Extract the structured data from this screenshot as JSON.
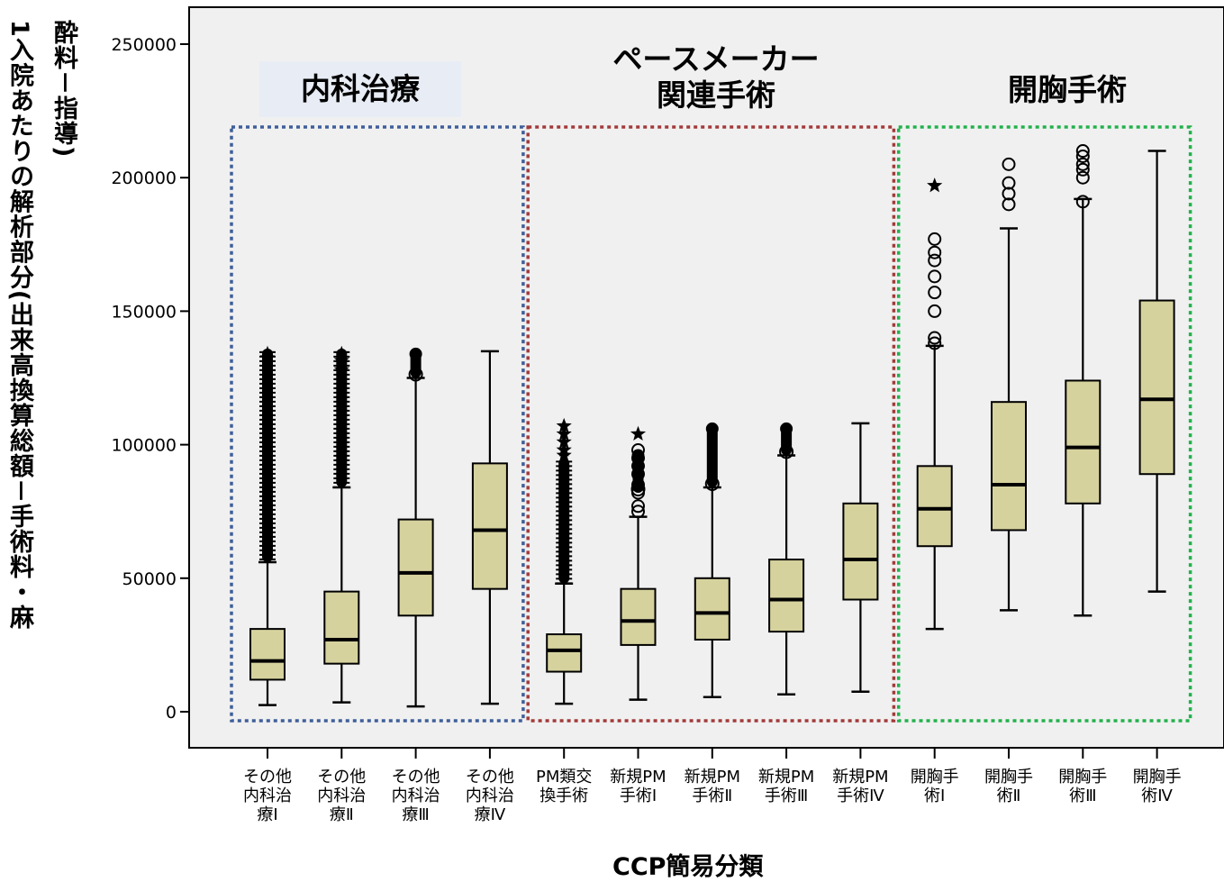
{
  "chart_data": {
    "type": "boxplot",
    "ylabel_lines": [
      "1入院あたりの解析部分(出来高換算総額－手術料・麻",
      "酔料－指導)"
    ],
    "xlabel": "CCP簡易分類",
    "ylim": [
      -12000,
      264000
    ],
    "yticks": [
      0,
      50000,
      100000,
      150000,
      200000,
      250000
    ],
    "ytick_labels": [
      "0",
      "50000",
      "100000",
      "150000",
      "200000",
      "250000"
    ],
    "groups": [
      {
        "label": "内科治療",
        "color": "#3f5f9a",
        "first": 0,
        "last": 3
      },
      {
        "label_lines": [
          "ペースメーカー",
          "関連手術"
        ],
        "color": "#a33a3a",
        "first": 4,
        "last": 8
      },
      {
        "label": "開胸手術",
        "color": "#22b14c",
        "first": 9,
        "last": 12
      }
    ],
    "categories": [
      {
        "label_lines": [
          "その他",
          "内科治",
          "療Ⅰ"
        ],
        "min": 2500,
        "q1": 12000,
        "median": 19000,
        "q3": 31000,
        "max": 56000,
        "outlier_band": [
          56000,
          136000
        ],
        "outlier_style": "mixed",
        "outliers": [],
        "extremes": [
          134000,
          132500
        ]
      },
      {
        "label_lines": [
          "その他",
          "内科治",
          "療Ⅱ"
        ],
        "min": 3500,
        "q1": 18000,
        "median": 27000,
        "q3": 45000,
        "max": 84000,
        "outlier_band": [
          84000,
          136000
        ],
        "outlier_style": "mixed",
        "outliers": [],
        "extremes": [
          134000,
          131500,
          128000
        ]
      },
      {
        "label_lines": [
          "その他",
          "内科治",
          "療Ⅲ"
        ],
        "min": 2000,
        "q1": 36000,
        "median": 52000,
        "q3": 72000,
        "max": 125000,
        "outlier_band": [
          125000,
          136000
        ],
        "outlier_style": "circle",
        "outliers": [],
        "extremes": []
      },
      {
        "label_lines": [
          "その他",
          "内科治",
          "療Ⅳ"
        ],
        "min": 3000,
        "q1": 46000,
        "median": 68000,
        "q3": 93000,
        "max": 135000,
        "outlier_band": null,
        "outlier_style": "circle",
        "outliers": [],
        "extremes": []
      },
      {
        "label_lines": [
          "PM類交",
          "換手術"
        ],
        "min": 3000,
        "q1": 15000,
        "median": 23000,
        "q3": 29000,
        "max": 48000,
        "outlier_band": [
          48000,
          95000
        ],
        "outlier_style": "mixed",
        "outliers": [],
        "extremes": [
          107000,
          104000,
          101000,
          98000,
          96000
        ]
      },
      {
        "label_lines": [
          "新規PM",
          "手術Ⅰ"
        ],
        "min": 4500,
        "q1": 25000,
        "median": 34000,
        "q3": 46000,
        "max": 73000,
        "outlier_band": [
          82000,
          98000
        ],
        "outlier_style": "circle",
        "outliers": [
          75000,
          77000,
          82000,
          85000,
          89000,
          92000,
          95000,
          98000
        ],
        "extremes": [
          104000
        ]
      },
      {
        "label_lines": [
          "新規PM",
          "手術Ⅱ"
        ],
        "min": 5500,
        "q1": 27000,
        "median": 37000,
        "q3": 50000,
        "max": 84000,
        "outlier_band": [
          84000,
          108000
        ],
        "outlier_style": "circle",
        "outliers": [],
        "extremes": []
      },
      {
        "label_lines": [
          "新規PM",
          "手術Ⅲ"
        ],
        "min": 6500,
        "q1": 30000,
        "median": 42000,
        "q3": 57000,
        "max": 96000,
        "outlier_band": [
          96000,
          108000
        ],
        "outlier_style": "circle",
        "outliers": [],
        "extremes": []
      },
      {
        "label_lines": [
          "新規PM",
          "手術Ⅳ"
        ],
        "min": 7500,
        "q1": 42000,
        "median": 57000,
        "q3": 78000,
        "max": 108000,
        "outlier_band": null,
        "outlier_style": "circle",
        "outliers": [],
        "extremes": []
      },
      {
        "label_lines": [
          "開胸手",
          "術Ⅰ"
        ],
        "min": 31000,
        "q1": 62000,
        "median": 76000,
        "q3": 92000,
        "max": 137000,
        "outlier_band": null,
        "outlier_style": "circle",
        "outliers": [
          138000,
          140000,
          150000,
          157000,
          163000,
          169000,
          172000,
          177000
        ],
        "extremes": [
          197000
        ]
      },
      {
        "label_lines": [
          "開胸手",
          "術Ⅱ"
        ],
        "min": 38000,
        "q1": 68000,
        "median": 85000,
        "q3": 116000,
        "max": 181000,
        "outlier_band": null,
        "outlier_style": "circle",
        "outliers": [
          190000,
          194000,
          198000,
          205000
        ],
        "extremes": []
      },
      {
        "label_lines": [
          "開胸手",
          "術Ⅲ"
        ],
        "min": 36000,
        "q1": 78000,
        "median": 99000,
        "q3": 124000,
        "max": 192000,
        "outlier_band": null,
        "outlier_style": "circle",
        "outliers": [
          191000,
          200000,
          203000,
          205000,
          208000,
          210000
        ],
        "extremes": []
      },
      {
        "label_lines": [
          "開胸手",
          "術Ⅳ"
        ],
        "min": 45000,
        "q1": 89000,
        "median": 117000,
        "q3": 154000,
        "max": 210000,
        "outlier_band": null,
        "outlier_style": "circle",
        "outliers": [],
        "extremes": []
      }
    ]
  },
  "colors": {
    "plot_bg": "#f0f0f0",
    "box_fill": "#d6d29e",
    "frame": "#000000"
  }
}
